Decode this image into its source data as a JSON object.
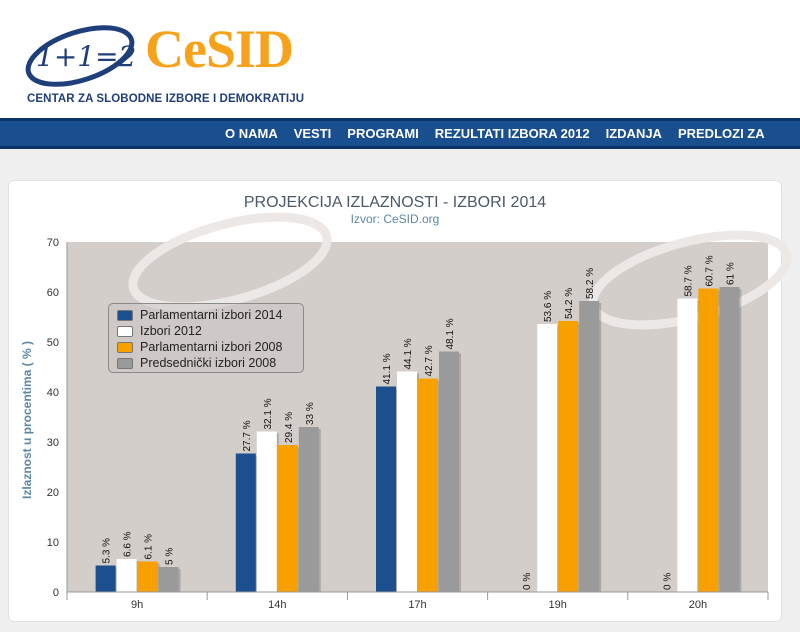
{
  "header": {
    "logo_text": "1+1=2",
    "brand_name": "CeSID",
    "tagline": "CENTAR ZA SLOBODNE IZBORE I DEMOKRATIJU"
  },
  "nav": {
    "items": [
      "O NAMA",
      "VESTI",
      "PROGRAMI",
      "REZULTATI IZBORA 2012",
      "IZDANJA",
      "PREDLOZI ZA"
    ]
  },
  "colors": {
    "nav_bg": "#1a4f8f",
    "brand_orange": "#f7a21b",
    "plot_bg": "#d4cecb"
  },
  "chart_data": {
    "type": "bar",
    "title": "PROJEKCIJA IZLAZNOSTI - IZBORI 2014",
    "subtitle": "Izvor: CeSID.org",
    "xlabel": "",
    "ylabel": "Izlaznost u procentima ( % )",
    "ylim": [
      0,
      70
    ],
    "yticks": [
      0,
      10,
      20,
      30,
      40,
      50,
      60,
      70
    ],
    "categories": [
      "9h",
      "14h",
      "17h",
      "19h",
      "20h"
    ],
    "series": [
      {
        "name": "Parlamentarni izbori 2014",
        "color": "#1b4f8e",
        "values": [
          5.3,
          27.7,
          41.1,
          0,
          0
        ],
        "labels": [
          "5.3 %",
          "27.7 %",
          "41.1 %",
          "0 %",
          "0 %"
        ]
      },
      {
        "name": "Izbori 2012",
        "color": "#ffffff",
        "values": [
          6.6,
          32.1,
          44.1,
          53.6,
          58.7
        ],
        "labels": [
          "6.6 %",
          "32.1 %",
          "44.1 %",
          "53.6 %",
          "58.7 %"
        ]
      },
      {
        "name": "Parlamentarni izbori 2008",
        "color": "#f7a000",
        "values": [
          6.1,
          29.4,
          42.7,
          54.2,
          60.7
        ],
        "labels": [
          "6.1 %",
          "29.4 %",
          "42.7 %",
          "54.2 %",
          "60.7 %"
        ]
      },
      {
        "name": "Predsednički izbori 2008",
        "color": "#9a9a9a",
        "values": [
          5,
          33,
          48.1,
          58.2,
          61
        ],
        "labels": [
          "5 %",
          "33 %",
          "48.1 %",
          "58.2 %",
          "61 %"
        ]
      }
    ],
    "legend_position": "top-left",
    "grid": false
  }
}
